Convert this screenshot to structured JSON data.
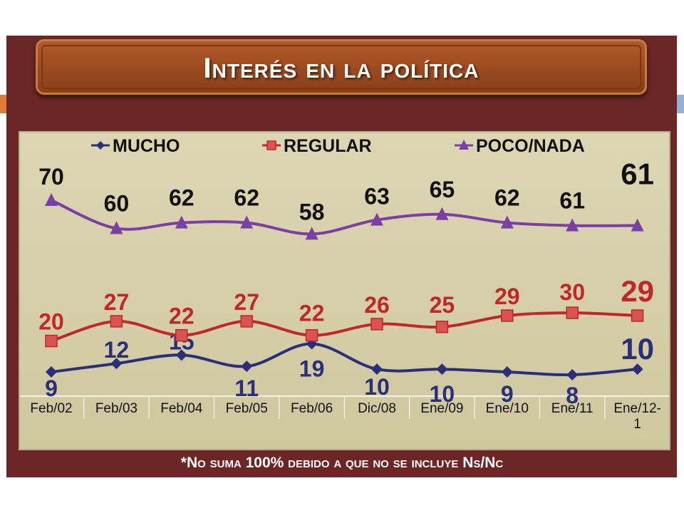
{
  "title": "Interés en la política",
  "footnote": "*No suma 100% debido a que no se incluye Ns/Nc",
  "chart_data": {
    "type": "line",
    "title": "Interés en la política",
    "categories": [
      "Feb/02",
      "Feb/03",
      "Feb/04",
      "Feb/05",
      "Feb/06",
      "Dic/08",
      "Ene/09",
      "Ene/10",
      "Ene/11",
      "Ene/12-1"
    ],
    "series": [
      {
        "name": "MUCHO",
        "values": [
          9,
          12,
          15,
          11,
          19,
          10,
          10,
          9,
          8,
          10
        ],
        "color": "#2b2f7a",
        "marker": "diamond"
      },
      {
        "name": "REGULAR",
        "values": [
          20,
          27,
          22,
          27,
          22,
          26,
          25,
          29,
          30,
          29
        ],
        "color": "#c0272d",
        "marker": "square"
      },
      {
        "name": "POCO/NADA",
        "values": [
          70,
          60,
          62,
          62,
          58,
          63,
          65,
          62,
          61,
          61
        ],
        "color": "#7b3fa6",
        "marker": "triangle"
      }
    ],
    "legend": "top",
    "grid": false
  }
}
